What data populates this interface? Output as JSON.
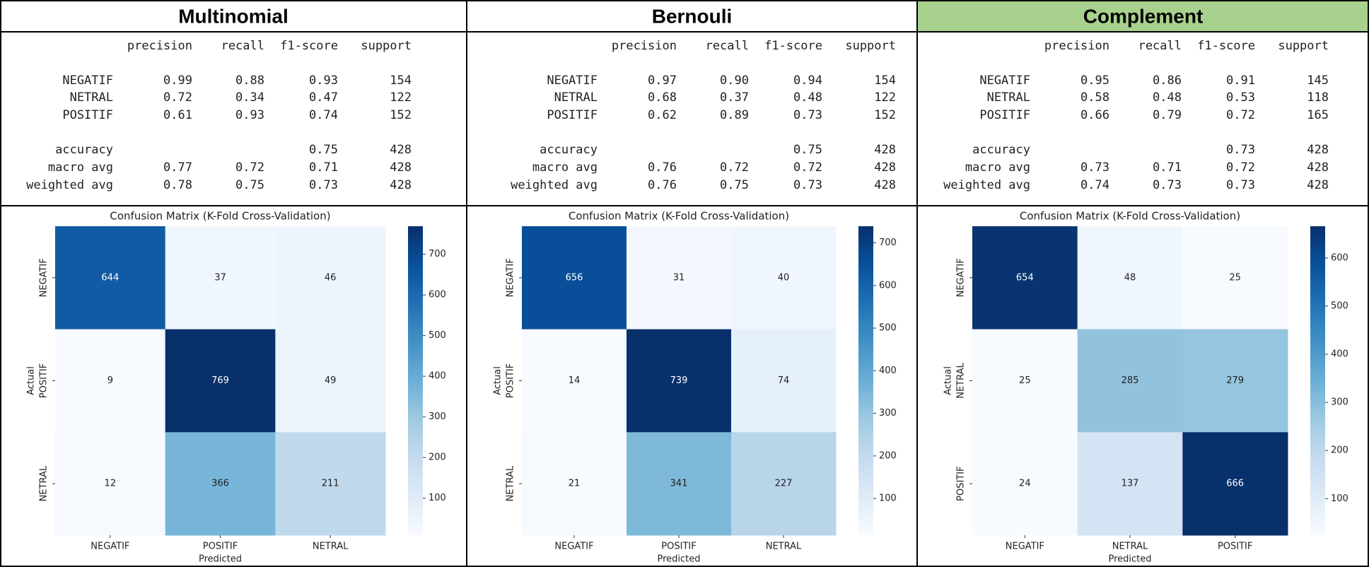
{
  "panels": [
    {
      "title": "Multinomial",
      "report": {
        "header": [
          "precision",
          "recall",
          "f1-score",
          "support"
        ],
        "rows": [
          [
            "NEGATIF",
            "0.99",
            "0.88",
            "0.93",
            "154"
          ],
          [
            "NETRAL",
            "0.72",
            "0.34",
            "0.47",
            "122"
          ],
          [
            "POSITIF",
            "0.61",
            "0.93",
            "0.74",
            "152"
          ],
          [
            "accuracy",
            "0.75",
            "428"
          ],
          [
            "macro avg",
            "0.77",
            "0.72",
            "0.71",
            "428"
          ],
          [
            "weighted avg",
            "0.78",
            "0.75",
            "0.73",
            "428"
          ]
        ]
      }
    },
    {
      "title": "Bernouli",
      "report": {
        "header": [
          "precision",
          "recall",
          "f1-score",
          "support"
        ],
        "rows": [
          [
            "NEGATIF",
            "0.97",
            "0.90",
            "0.94",
            "154"
          ],
          [
            "NETRAL",
            "0.68",
            "0.37",
            "0.48",
            "122"
          ],
          [
            "POSITIF",
            "0.62",
            "0.89",
            "0.73",
            "152"
          ],
          [
            "accuracy",
            "0.75",
            "428"
          ],
          [
            "macro avg",
            "0.76",
            "0.72",
            "0.72",
            "428"
          ],
          [
            "weighted avg",
            "0.76",
            "0.75",
            "0.73",
            "428"
          ]
        ]
      }
    },
    {
      "title": "Complement",
      "report": {
        "header": [
          "precision",
          "recall",
          "f1-score",
          "support"
        ],
        "rows": [
          [
            "NEGATIF",
            "0.95",
            "0.86",
            "0.91",
            "145"
          ],
          [
            "NETRAL",
            "0.58",
            "0.48",
            "0.53",
            "118"
          ],
          [
            "POSITIF",
            "0.66",
            "0.79",
            "0.72",
            "165"
          ],
          [
            "accuracy",
            "0.73",
            "428"
          ],
          [
            "macro avg",
            "0.73",
            "0.71",
            "0.72",
            "428"
          ],
          [
            "weighted avg",
            "0.74",
            "0.73",
            "0.73",
            "428"
          ]
        ]
      }
    }
  ],
  "chart_data": [
    {
      "type": "heatmap",
      "title": "Confusion Matrix (K-Fold Cross-Validation)",
      "x_label": "Predicted",
      "y_label": "Actual",
      "x_categories": [
        "NEGATIF",
        "POSITIF",
        "NETRAL"
      ],
      "y_categories": [
        "NEGATIF",
        "POSITIF",
        "NETRAL"
      ],
      "values": [
        [
          644,
          37,
          46
        ],
        [
          9,
          769,
          49
        ],
        [
          12,
          366,
          211
        ]
      ],
      "colormap": "Blues",
      "clim": [
        9,
        769
      ],
      "cticks": [
        100,
        200,
        300,
        400,
        500,
        600,
        700
      ]
    },
    {
      "type": "heatmap",
      "title": "Confusion Matrix (K-Fold Cross-Validation)",
      "x_label": "Predicted",
      "y_label": "Actual",
      "x_categories": [
        "NEGATIF",
        "POSITIF",
        "NETRAL"
      ],
      "y_categories": [
        "NEGATIF",
        "POSITIF",
        "NETRAL"
      ],
      "values": [
        [
          656,
          31,
          40
        ],
        [
          14,
          739,
          74
        ],
        [
          21,
          341,
          227
        ]
      ],
      "colormap": "Blues",
      "clim": [
        14,
        739
      ],
      "cticks": [
        100,
        200,
        300,
        400,
        500,
        600,
        700
      ]
    },
    {
      "type": "heatmap",
      "title": "Confusion Matrix (K-Fold Cross-Validation)",
      "x_label": "Predicted",
      "y_label": "Actual",
      "x_categories": [
        "NEGATIF",
        "NETRAL",
        "POSITIF"
      ],
      "y_categories": [
        "NEGATIF",
        "NETRAL",
        "POSITIF"
      ],
      "values": [
        [
          654,
          48,
          25
        ],
        [
          25,
          285,
          279
        ],
        [
          24,
          137,
          666
        ]
      ],
      "colormap": "Blues",
      "clim": [
        24,
        666
      ],
      "cticks": [
        100,
        200,
        300,
        400,
        500,
        600
      ]
    }
  ]
}
